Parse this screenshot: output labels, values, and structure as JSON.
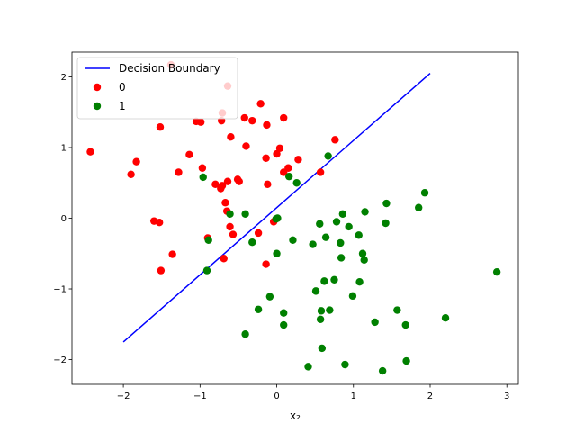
{
  "chart_data": {
    "type": "scatter",
    "title": "",
    "xlabel": "x₂",
    "ylabel": "",
    "xlim": [
      -2.67,
      3.15
    ],
    "ylim": [
      -2.35,
      2.35
    ],
    "xticks": [
      -2,
      -1,
      0,
      1,
      2,
      3
    ],
    "yticks": [
      -2,
      -1,
      0,
      1,
      2
    ],
    "xtick_labels": [
      "−2",
      "−1",
      "0",
      "1",
      "2",
      "3"
    ],
    "ytick_labels": [
      "−2",
      "−1",
      "0",
      "1",
      "2"
    ],
    "grid": false,
    "legend_position": "upper-left",
    "legend": [
      {
        "label": "Decision Boundary",
        "kind": "line",
        "color": "#0000ff"
      },
      {
        "label": "0",
        "kind": "marker",
        "color": "#ff0000"
      },
      {
        "label": "1",
        "kind": "marker",
        "color": "#008000"
      }
    ],
    "decision_boundary": {
      "name": "Decision Boundary",
      "color": "#0000ff",
      "x": [
        -2.0,
        2.0
      ],
      "y": [
        -1.75,
        2.05
      ]
    },
    "series": [
      {
        "name": "0",
        "color": "#ff0000",
        "points": [
          [
            -2.43,
            0.94
          ],
          [
            -1.9,
            0.62
          ],
          [
            -1.83,
            0.8
          ],
          [
            -1.6,
            -0.04
          ],
          [
            -1.53,
            -0.06
          ],
          [
            -1.52,
            1.29
          ],
          [
            -1.51,
            -0.74
          ],
          [
            -1.38,
            2.17
          ],
          [
            -1.36,
            -0.51
          ],
          [
            -1.28,
            0.65
          ],
          [
            -1.14,
            0.9
          ],
          [
            -1.05,
            1.37
          ],
          [
            -0.99,
            1.36
          ],
          [
            -0.97,
            0.71
          ],
          [
            -0.9,
            -0.28
          ],
          [
            -0.8,
            0.48
          ],
          [
            -0.73,
            0.42
          ],
          [
            -0.71,
            0.46
          ],
          [
            -0.72,
            1.38
          ],
          [
            -0.71,
            1.49
          ],
          [
            -0.69,
            -0.57
          ],
          [
            -0.67,
            0.22
          ],
          [
            -0.65,
            0.1
          ],
          [
            -0.64,
            0.52
          ],
          [
            -0.64,
            1.87
          ],
          [
            -0.61,
            -0.12
          ],
          [
            -0.6,
            1.15
          ],
          [
            -0.57,
            -0.23
          ],
          [
            -0.51,
            0.55
          ],
          [
            -0.49,
            0.52
          ],
          [
            -0.42,
            1.42
          ],
          [
            -0.4,
            1.02
          ],
          [
            -0.32,
            1.38
          ],
          [
            -0.24,
            -0.21
          ],
          [
            -0.21,
            1.62
          ],
          [
            -0.14,
            0.85
          ],
          [
            -0.13,
            1.32
          ],
          [
            -0.12,
            0.48
          ],
          [
            -0.14,
            -0.65
          ],
          [
            -0.04,
            -0.05
          ],
          [
            0.0,
            0.91
          ],
          [
            0.04,
            0.99
          ],
          [
            0.09,
            1.42
          ],
          [
            0.09,
            0.65
          ],
          [
            0.15,
            0.71
          ],
          [
            0.28,
            0.83
          ],
          [
            0.57,
            0.65
          ],
          [
            0.76,
            1.11
          ]
        ]
      },
      {
        "name": "1",
        "color": "#008000",
        "points": [
          [
            -0.96,
            0.58
          ],
          [
            -0.91,
            -0.74
          ],
          [
            -0.89,
            -0.31
          ],
          [
            -0.61,
            0.06
          ],
          [
            -0.41,
            0.06
          ],
          [
            -0.41,
            -1.64
          ],
          [
            -0.32,
            -0.34
          ],
          [
            -0.24,
            -1.29
          ],
          [
            -0.09,
            -1.11
          ],
          [
            -0.01,
            -0.01
          ],
          [
            0.0,
            -0.5
          ],
          [
            0.01,
            0.0
          ],
          [
            0.09,
            -1.34
          ],
          [
            0.09,
            -1.51
          ],
          [
            0.16,
            0.59
          ],
          [
            0.21,
            -0.31
          ],
          [
            0.26,
            0.5
          ],
          [
            0.67,
            0.88
          ],
          [
            0.41,
            -2.1
          ],
          [
            0.47,
            -0.37
          ],
          [
            0.51,
            -1.03
          ],
          [
            0.56,
            -0.08
          ],
          [
            0.58,
            -1.31
          ],
          [
            0.57,
            -1.43
          ],
          [
            0.59,
            -1.84
          ],
          [
            0.62,
            -0.89
          ],
          [
            0.64,
            -0.27
          ],
          [
            0.69,
            -1.3
          ],
          [
            0.75,
            -0.87
          ],
          [
            0.78,
            -0.05
          ],
          [
            0.83,
            -0.35
          ],
          [
            0.84,
            -0.56
          ],
          [
            0.86,
            0.06
          ],
          [
            0.89,
            -2.07
          ],
          [
            0.94,
            -0.12
          ],
          [
            0.99,
            -1.1
          ],
          [
            1.07,
            -0.24
          ],
          [
            1.08,
            -0.9
          ],
          [
            1.12,
            -0.5
          ],
          [
            1.14,
            -0.59
          ],
          [
            1.15,
            0.09
          ],
          [
            1.28,
            -1.47
          ],
          [
            1.38,
            -2.16
          ],
          [
            1.42,
            -0.07
          ],
          [
            1.43,
            0.21
          ],
          [
            1.57,
            -1.3
          ],
          [
            1.68,
            -1.51
          ],
          [
            1.69,
            -2.02
          ],
          [
            1.85,
            0.15
          ],
          [
            1.93,
            0.36
          ],
          [
            2.2,
            -1.41
          ],
          [
            2.87,
            -0.76
          ]
        ]
      }
    ]
  }
}
